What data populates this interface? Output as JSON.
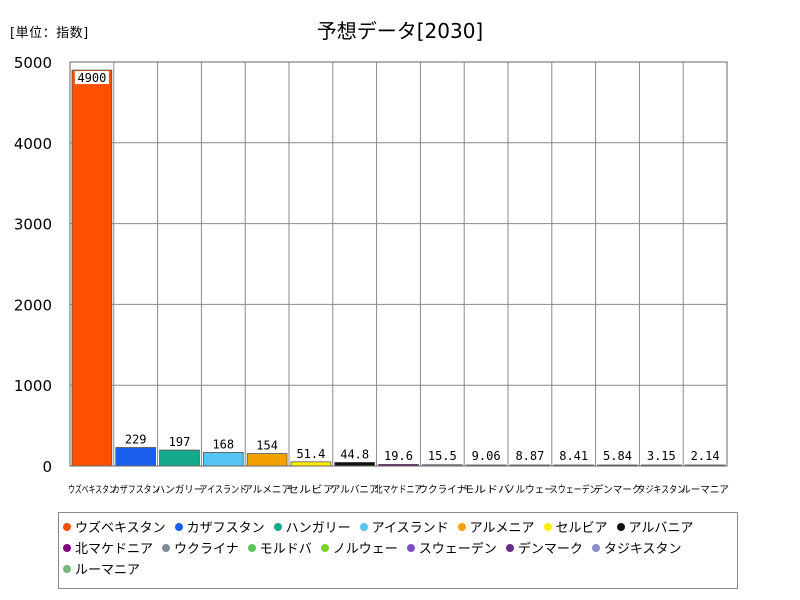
{
  "header": {
    "unit_label": "[単位：指数]",
    "title": "予想データ[2030]"
  },
  "chart_data": {
    "type": "bar",
    "title": "予想データ[2030]",
    "ylabel": "[単位：指数]",
    "xlabel": "",
    "ylim": [
      0,
      5000
    ],
    "yticks": [
      "0",
      "1000",
      "2000",
      "3000",
      "4000",
      "5000"
    ],
    "grid": true,
    "legend_position": "bottom",
    "categories": [
      "ウズベキスタン",
      "カザフスタン",
      "ハンガリー",
      "アイスランド",
      "アルメニア",
      "セルビア",
      "アルバニア",
      "北マケドニア",
      "ウクライナ",
      "モルドバ",
      "ノルウェー",
      "スウェーデン",
      "デンマーク",
      "タジキスタン",
      "ルーマニア"
    ],
    "values": [
      4900,
      229,
      197,
      168,
      154,
      51.4,
      44.8,
      19.6,
      15.5,
      9.06,
      8.87,
      8.41,
      5.84,
      3.15,
      2.14
    ],
    "value_labels": [
      "4900",
      "229",
      "197",
      "168",
      "154",
      "51.4",
      "44.8",
      "19.6",
      "15.5",
      "9.06",
      "8.87",
      "8.41",
      "5.84",
      "3.15",
      "2.14"
    ],
    "colors": [
      "#ff4f00",
      "#1a5ef0",
      "#16a88a",
      "#55c4f2",
      "#f2a100",
      "#ffee00",
      "#111111",
      "#800080",
      "#7f8c99",
      "#5cc25c",
      "#7ad12a",
      "#7b4ec0",
      "#6a2b8f",
      "#8e8ec8",
      "#77b877"
    ]
  }
}
